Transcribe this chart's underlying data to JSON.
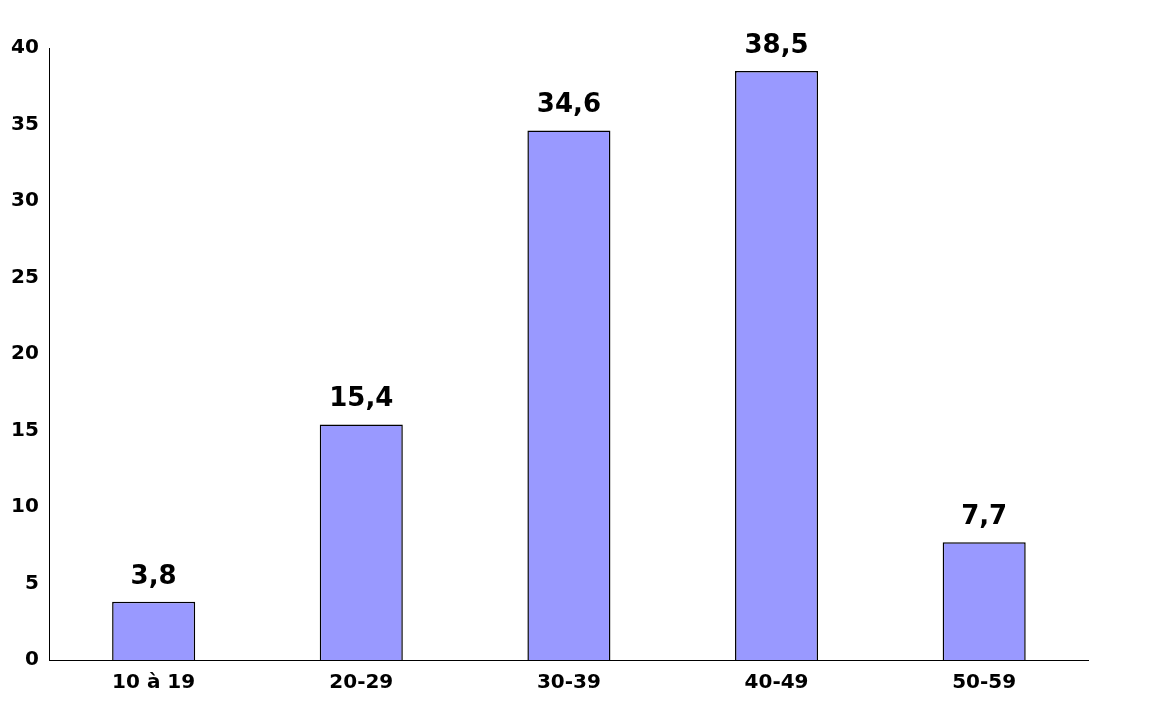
{
  "chart_data": {
    "type": "bar",
    "categories": [
      "10 à 19",
      "20-29",
      "30-39",
      "40-49",
      "50-59"
    ],
    "values": [
      3.8,
      15.4,
      34.6,
      38.5,
      7.7
    ],
    "value_labels": [
      "3,8",
      "15,4",
      "34,6",
      "38,5",
      "7,7"
    ],
    "color": "#9999ff",
    "ylim": [
      0,
      40
    ],
    "yticks": [
      0,
      5,
      10,
      15,
      20,
      25,
      30,
      35,
      40
    ],
    "grid": false,
    "legend": false
  }
}
